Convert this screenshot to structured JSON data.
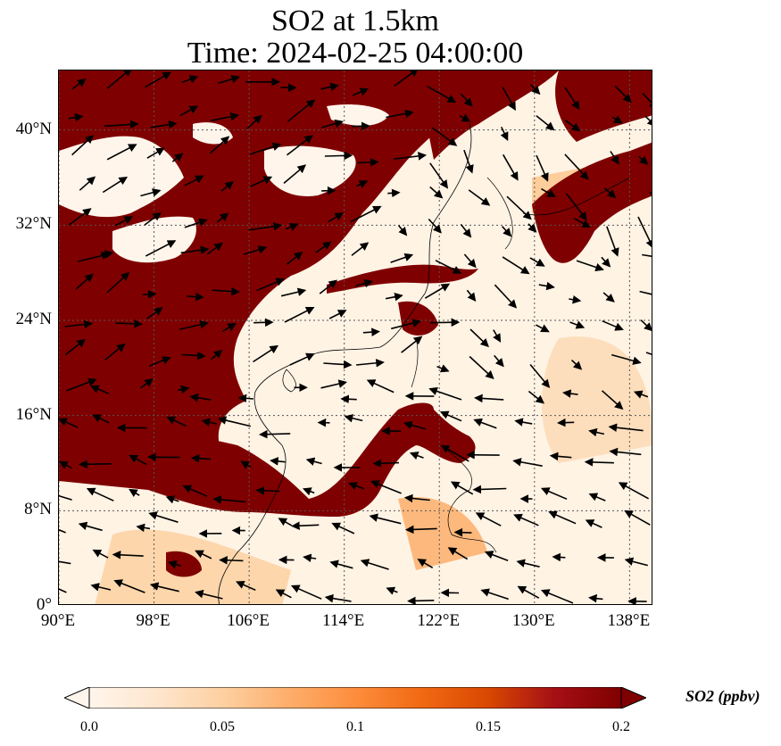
{
  "title": {
    "line1": "SO2 at 1.5km",
    "line2": "Time: 2024-02-25 04:00:00"
  },
  "map": {
    "lat_labels": [
      "40°N",
      "32°N",
      "24°N",
      "16°N",
      "8°N",
      "0°"
    ],
    "lat_values": [
      40,
      32,
      24,
      16,
      8,
      0
    ],
    "lon_labels": [
      "90°E",
      "98°E",
      "106°E",
      "114°E",
      "122°E",
      "130°E",
      "138°E"
    ],
    "lon_values": [
      90,
      98,
      106,
      114,
      122,
      130,
      138
    ],
    "extent": {
      "lon_min": 90,
      "lon_max": 140,
      "lat_min": 0,
      "lat_max": 45
    },
    "gridlines": "dotted",
    "field_colors": {
      "low": "#fff5eb",
      "mid": "#fdae6b",
      "high": "#7f0000"
    }
  },
  "colorbar": {
    "label": "SO2 (ppbv)",
    "ticks": [
      "0.0",
      "0.05",
      "0.1",
      "0.15",
      "0.2"
    ],
    "tick_values": [
      0.0,
      0.05,
      0.1,
      0.15,
      0.2
    ],
    "range": [
      0.0,
      0.2
    ],
    "extend": "both",
    "colors": [
      "#fff5eb",
      "#fee6ce",
      "#fdd0a2",
      "#fdae6b",
      "#fd8d3c",
      "#f16913",
      "#d94801",
      "#a50f15",
      "#7f0000"
    ]
  }
}
